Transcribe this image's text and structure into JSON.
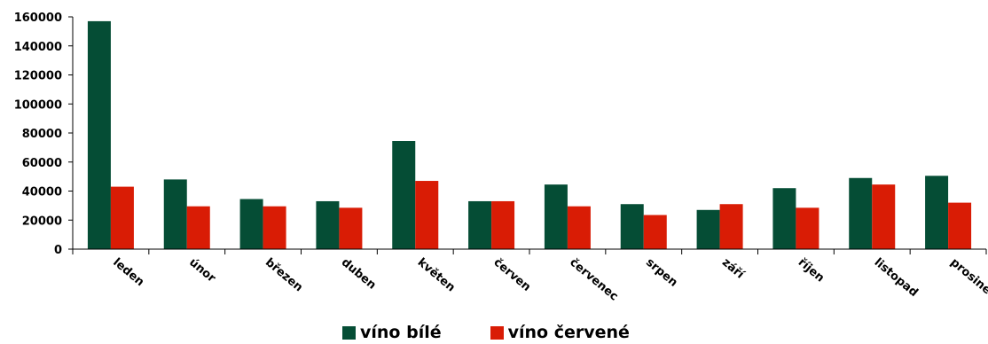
{
  "chart_data": {
    "type": "bar",
    "categories": [
      "leden",
      "únor",
      "březen",
      "duben",
      "květen",
      "červen",
      "červenec",
      "srpen",
      "září",
      "říjen",
      "listopad",
      "prosinec"
    ],
    "series": [
      {
        "name": "víno bílé",
        "color": "#054d35",
        "values": [
          157000,
          48000,
          34500,
          33000,
          74500,
          33000,
          44500,
          31000,
          27000,
          42000,
          49000,
          50500
        ]
      },
      {
        "name": "víno červené",
        "color": "#d91c05",
        "values": [
          43000,
          29500,
          29500,
          28500,
          47000,
          33000,
          29500,
          23500,
          31000,
          28500,
          44500,
          32000
        ]
      }
    ],
    "yticks": [
      "0",
      "20000",
      "40000",
      "60000",
      "80000",
      "100000",
      "120000",
      "140000",
      "160000"
    ],
    "ylim": [
      0,
      160000
    ],
    "legend_position": "bottom",
    "grid": false
  }
}
